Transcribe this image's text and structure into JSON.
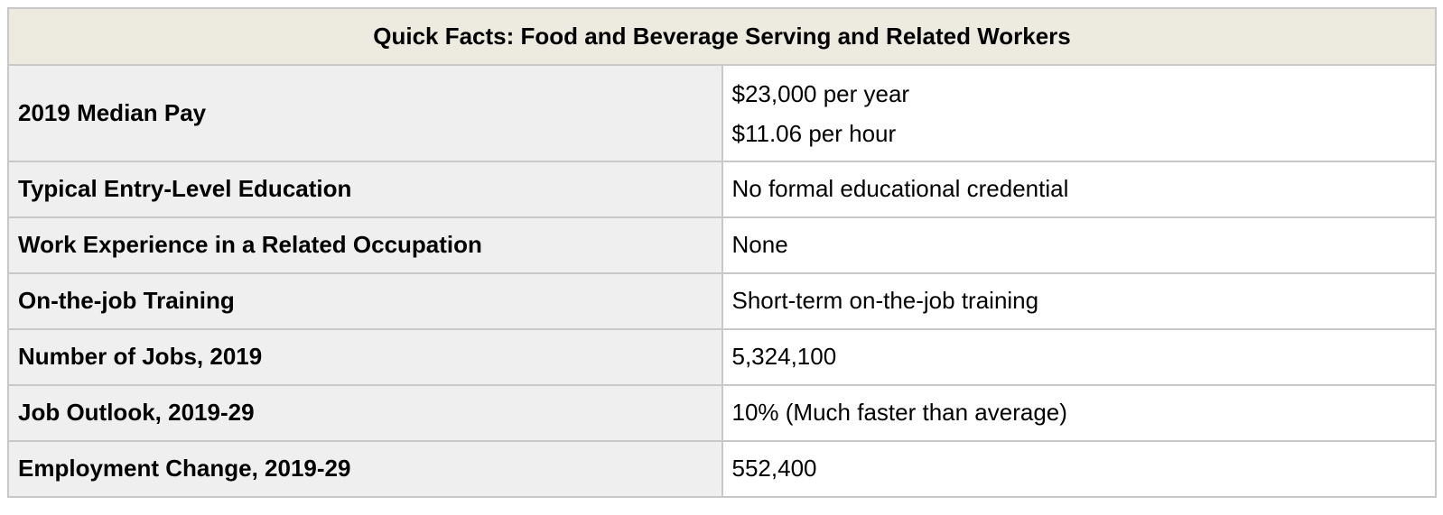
{
  "table": {
    "caption": "Quick Facts: Food and Beverage Serving and Related Workers",
    "rows": [
      {
        "label": "2019 Median Pay",
        "values": [
          "$23,000 per year",
          "$11.06 per hour"
        ]
      },
      {
        "label": "Typical Entry-Level Education",
        "values": [
          "No formal educational credential"
        ]
      },
      {
        "label": "Work Experience in a Related Occupation",
        "values": [
          "None"
        ]
      },
      {
        "label": "On-the-job Training",
        "values": [
          "Short-term on-the-job training"
        ]
      },
      {
        "label": "Number of Jobs, 2019",
        "values": [
          "5,324,100"
        ]
      },
      {
        "label": "Job Outlook, 2019-29",
        "values": [
          "10% (Much faster than average)"
        ]
      },
      {
        "label": "Employment Change, 2019-29",
        "values": [
          "552,400"
        ]
      }
    ]
  }
}
